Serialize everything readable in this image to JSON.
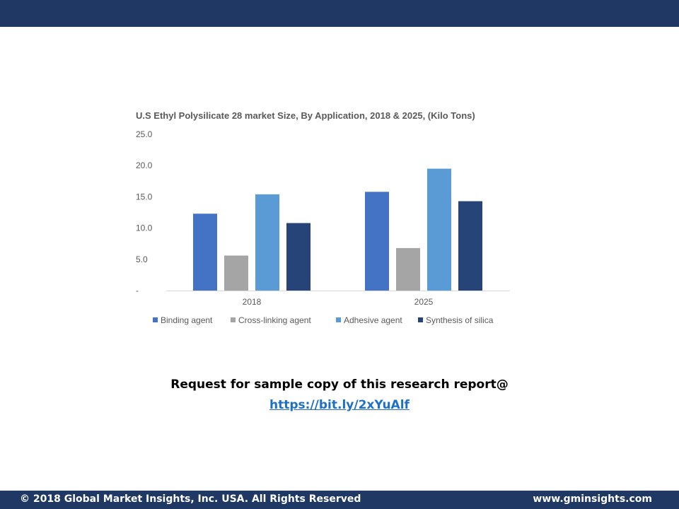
{
  "footer": {
    "copyright": "© 2018 Global Market Insights, Inc. USA. All Rights Reserved",
    "website": "www.gminsights.com"
  },
  "request": {
    "text": "Request for sample copy of this research report@",
    "link": "https://bit.ly/2xYuAlf"
  },
  "colors": {
    "bar_fill": "#1f3864",
    "series": [
      "#4472c4",
      "#a5a5a5",
      "#5b9bd5",
      "#264478"
    ]
  },
  "chart_data": {
    "type": "bar",
    "title": "U.S Ethyl Polysilicate 28 market Size, By Application, 2018 & 2025, (Kilo Tons)",
    "categories": [
      "2018",
      "2025"
    ],
    "series": [
      {
        "name": "Binding agent",
        "values": [
          12.3,
          15.8
        ]
      },
      {
        "name": "Cross-linking agent",
        "values": [
          5.6,
          6.8
        ]
      },
      {
        "name": "Adhesive agent",
        "values": [
          15.4,
          19.5
        ]
      },
      {
        "name": "Synthesis of silica",
        "values": [
          10.8,
          14.3
        ]
      }
    ],
    "yticks": [
      "-",
      "5.0",
      "10.0",
      "15.0",
      "20.0",
      "25.0"
    ],
    "ylim": [
      0,
      25
    ],
    "legend_position": "bottom",
    "grid": false
  }
}
